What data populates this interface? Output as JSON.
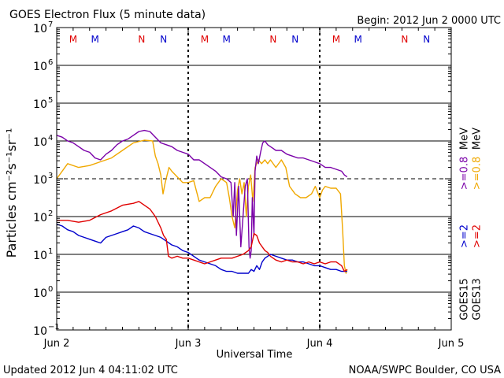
{
  "header": {
    "title": "GOES Electron Flux (5 minute data)",
    "begin": "Begin: 2012 Jun 2 0000 UTC"
  },
  "footer": {
    "updated": "Updated 2012 Jun  4 04:11:02 UTC",
    "credit": "NOAA/SWPC Boulder, CO USA"
  },
  "colors": {
    "red": "#e00000",
    "blue": "#0000cc",
    "purple": "#7a00a8",
    "orange": "#f0a800",
    "black": "#000000"
  },
  "chart_data": {
    "type": "line",
    "title": "GOES Electron Flux (5 minute data)",
    "xlabel": "Universal Time",
    "ylabel": "Particles cm⁻²s⁻¹sr⁻¹",
    "xlim_hours": [
      0,
      72
    ],
    "ylim_log10": [
      -1,
      7
    ],
    "yscale": "log",
    "x_ticks": [
      {
        "hour": 0,
        "label": "Jun 2"
      },
      {
        "hour": 24,
        "label": "Jun 3"
      },
      {
        "hour": 48,
        "label": "Jun 4"
      },
      {
        "hour": 72,
        "label": "Jun 5"
      }
    ],
    "y_ticks": [
      {
        "exp": 7,
        "label": "7"
      },
      {
        "exp": 6,
        "label": "6"
      },
      {
        "exp": 5,
        "label": "5"
      },
      {
        "exp": 4,
        "label": "4"
      },
      {
        "exp": 3,
        "label": "3"
      },
      {
        "exp": 2,
        "label": "2"
      },
      {
        "exp": 1,
        "label": "1"
      },
      {
        "exp": 0,
        "label": "0"
      },
      {
        "exp": -1,
        "label": "−1"
      }
    ],
    "tick_base": "10",
    "dashed_threshold_exp": 3,
    "day_boundaries_hours": [
      24,
      48
    ],
    "markers": [
      {
        "hour": 3,
        "label": "M",
        "color": "red"
      },
      {
        "hour": 7,
        "label": "M",
        "color": "blue"
      },
      {
        "hour": 15.5,
        "label": "N",
        "color": "red"
      },
      {
        "hour": 19.5,
        "label": "N",
        "color": "blue"
      },
      {
        "hour": 27,
        "label": "M",
        "color": "red"
      },
      {
        "hour": 31,
        "label": "M",
        "color": "blue"
      },
      {
        "hour": 39.5,
        "label": "N",
        "color": "red"
      },
      {
        "hour": 43.5,
        "label": "N",
        "color": "blue"
      },
      {
        "hour": 51,
        "label": "M",
        "color": "red"
      },
      {
        "hour": 55,
        "label": "M",
        "color": "blue"
      },
      {
        "hour": 63.5,
        "label": "N",
        "color": "red"
      },
      {
        "hour": 67.5,
        "label": "N",
        "color": "blue"
      }
    ],
    "legend": [
      {
        "satellite": "GOES13",
        "color": "black",
        "label": "GOES13"
      },
      {
        "satellite": "GOES15",
        "color": "black",
        "label": "GOES15"
      },
      {
        "label": ">=2",
        "color": "red"
      },
      {
        "label": ">=2",
        "color": "blue"
      },
      {
        "label": ">=0.8",
        "color": "orange"
      },
      {
        "label": ">=0.8",
        "color": "purple"
      },
      {
        "label": "MeV",
        "color": "black"
      }
    ],
    "series": [
      {
        "name": "GOES13 >=0.8 MeV",
        "color": "orange",
        "points": [
          [
            0,
            3.0
          ],
          [
            2,
            3.4
          ],
          [
            4,
            3.3
          ],
          [
            6,
            3.35
          ],
          [
            8,
            3.45
          ],
          [
            10,
            3.55
          ],
          [
            12,
            3.75
          ],
          [
            14,
            3.95
          ],
          [
            16,
            4.02
          ],
          [
            17.5,
            4.0
          ],
          [
            18,
            3.6
          ],
          [
            18.5,
            3.4
          ],
          [
            19,
            3.1
          ],
          [
            19.4,
            2.6
          ],
          [
            19.8,
            2.9
          ],
          [
            20.5,
            3.3
          ],
          [
            21,
            3.2
          ],
          [
            22,
            3.05
          ],
          [
            23,
            2.9
          ],
          [
            24,
            2.9
          ],
          [
            25,
            2.95
          ],
          [
            26,
            2.4
          ],
          [
            27,
            2.5
          ],
          [
            28,
            2.5
          ],
          [
            29,
            2.8
          ],
          [
            29.5,
            2.9
          ],
          [
            30,
            3.0
          ],
          [
            31,
            2.9
          ],
          [
            31.5,
            2.5
          ],
          [
            32,
            2.0
          ],
          [
            32.5,
            1.7
          ],
          [
            33,
            2.7
          ],
          [
            33.4,
            3.0
          ],
          [
            33.8,
            2.6
          ],
          [
            34.2,
            2.9
          ],
          [
            34.6,
            2.0
          ],
          [
            35,
            2.8
          ],
          [
            35.4,
            3.1
          ],
          [
            35.8,
            2.4
          ],
          [
            36.2,
            3.3
          ],
          [
            36.8,
            3.5
          ],
          [
            37.4,
            3.4
          ],
          [
            38,
            3.5
          ],
          [
            38.5,
            3.4
          ],
          [
            39,
            3.5
          ],
          [
            40,
            3.3
          ],
          [
            41,
            3.5
          ],
          [
            41.8,
            3.3
          ],
          [
            42.5,
            2.8
          ],
          [
            43.5,
            2.6
          ],
          [
            44.5,
            2.5
          ],
          [
            45.5,
            2.5
          ],
          [
            46.5,
            2.6
          ],
          [
            47.2,
            2.8
          ],
          [
            48,
            2.5
          ],
          [
            48.5,
            2.7
          ],
          [
            49,
            2.8
          ],
          [
            50,
            2.75
          ],
          [
            51,
            2.75
          ],
          [
            51.8,
            2.6
          ],
          [
            52.2,
            1.6
          ],
          [
            52.5,
            0.7
          ],
          [
            52.8,
            0.5
          ],
          [
            53,
            0.6
          ]
        ]
      },
      {
        "name": "GOES15 >=0.8 MeV",
        "color": "purple",
        "points": [
          [
            0,
            4.15
          ],
          [
            1,
            4.1
          ],
          [
            2,
            4.0
          ],
          [
            3,
            3.95
          ],
          [
            4,
            3.85
          ],
          [
            5,
            3.75
          ],
          [
            6,
            3.7
          ],
          [
            7,
            3.55
          ],
          [
            8,
            3.5
          ],
          [
            9,
            3.65
          ],
          [
            10,
            3.75
          ],
          [
            11,
            3.9
          ],
          [
            12,
            4.0
          ],
          [
            13,
            4.05
          ],
          [
            14,
            4.15
          ],
          [
            15,
            4.25
          ],
          [
            16,
            4.28
          ],
          [
            17,
            4.25
          ],
          [
            18,
            4.1
          ],
          [
            19,
            3.95
          ],
          [
            20,
            3.9
          ],
          [
            21,
            3.85
          ],
          [
            22,
            3.75
          ],
          [
            23,
            3.7
          ],
          [
            24,
            3.65
          ],
          [
            25,
            3.5
          ],
          [
            26,
            3.5
          ],
          [
            27,
            3.4
          ],
          [
            28,
            3.3
          ],
          [
            29,
            3.2
          ],
          [
            30,
            3.05
          ],
          [
            31,
            3.0
          ],
          [
            31.8,
            2.9
          ],
          [
            32.2,
            2.0
          ],
          [
            32.5,
            2.9
          ],
          [
            32.8,
            1.5
          ],
          [
            33.2,
            2.8
          ],
          [
            33.6,
            1.2
          ],
          [
            34,
            2.0
          ],
          [
            34.4,
            2.8
          ],
          [
            34.8,
            3.0
          ],
          [
            35.1,
            1.2
          ],
          [
            35.3,
            0.9
          ],
          [
            35.5,
            1.1
          ],
          [
            35.7,
            2.5
          ],
          [
            36,
            1.5
          ],
          [
            36.2,
            3.2
          ],
          [
            36.5,
            3.6
          ],
          [
            36.8,
            3.4
          ],
          [
            37.2,
            3.7
          ],
          [
            37.6,
            3.95
          ],
          [
            38,
            4.0
          ],
          [
            38.5,
            3.9
          ],
          [
            39,
            3.85
          ],
          [
            39.5,
            3.8
          ],
          [
            40,
            3.75
          ],
          [
            41,
            3.75
          ],
          [
            42,
            3.65
          ],
          [
            43,
            3.6
          ],
          [
            44,
            3.55
          ],
          [
            45,
            3.55
          ],
          [
            46,
            3.5
          ],
          [
            47,
            3.45
          ],
          [
            48,
            3.4
          ],
          [
            49,
            3.3
          ],
          [
            50,
            3.3
          ],
          [
            51,
            3.25
          ],
          [
            52,
            3.2
          ],
          [
            52.5,
            3.1
          ],
          [
            53,
            3.05
          ]
        ]
      },
      {
        "name": "GOES15 >=2 MeV",
        "color": "blue",
        "points": [
          [
            0,
            1.8
          ],
          [
            1,
            1.75
          ],
          [
            2,
            1.65
          ],
          [
            3,
            1.6
          ],
          [
            4,
            1.5
          ],
          [
            5,
            1.45
          ],
          [
            6,
            1.4
          ],
          [
            7,
            1.35
          ],
          [
            8,
            1.3
          ],
          [
            9,
            1.45
          ],
          [
            10,
            1.5
          ],
          [
            11,
            1.55
          ],
          [
            12,
            1.6
          ],
          [
            13,
            1.65
          ],
          [
            14,
            1.75
          ],
          [
            15,
            1.7
          ],
          [
            16,
            1.6
          ],
          [
            17,
            1.55
          ],
          [
            18,
            1.5
          ],
          [
            19,
            1.45
          ],
          [
            20,
            1.35
          ],
          [
            21,
            1.25
          ],
          [
            22,
            1.2
          ],
          [
            23,
            1.1
          ],
          [
            24,
            1.05
          ],
          [
            25,
            0.95
          ],
          [
            26,
            0.85
          ],
          [
            27,
            0.8
          ],
          [
            28,
            0.75
          ],
          [
            29,
            0.7
          ],
          [
            30,
            0.6
          ],
          [
            31,
            0.55
          ],
          [
            32,
            0.55
          ],
          [
            33,
            0.5
          ],
          [
            34,
            0.5
          ],
          [
            35,
            0.5
          ],
          [
            35.5,
            0.6
          ],
          [
            36,
            0.55
          ],
          [
            36.5,
            0.7
          ],
          [
            37,
            0.6
          ],
          [
            37.5,
            0.8
          ],
          [
            38,
            0.9
          ],
          [
            38.5,
            0.95
          ],
          [
            39,
            1.0
          ],
          [
            40,
            0.95
          ],
          [
            41,
            0.9
          ],
          [
            42,
            0.85
          ],
          [
            43,
            0.85
          ],
          [
            44,
            0.8
          ],
          [
            45,
            0.8
          ],
          [
            46,
            0.75
          ],
          [
            47,
            0.7
          ],
          [
            48,
            0.7
          ],
          [
            49,
            0.65
          ],
          [
            50,
            0.6
          ],
          [
            51,
            0.6
          ],
          [
            52,
            0.55
          ],
          [
            53,
            0.55
          ]
        ]
      },
      {
        "name": "GOES13 >=2 MeV",
        "color": "red",
        "points": [
          [
            0,
            1.9
          ],
          [
            2,
            1.9
          ],
          [
            4,
            1.85
          ],
          [
            6,
            1.9
          ],
          [
            8,
            2.05
          ],
          [
            10,
            2.15
          ],
          [
            12,
            2.3
          ],
          [
            14,
            2.35
          ],
          [
            15,
            2.4
          ],
          [
            16,
            2.3
          ],
          [
            17,
            2.2
          ],
          [
            18,
            2.0
          ],
          [
            19,
            1.7
          ],
          [
            19.5,
            1.5
          ],
          [
            20,
            1.4
          ],
          [
            20.4,
            0.95
          ],
          [
            21,
            0.9
          ],
          [
            22,
            0.95
          ],
          [
            23,
            0.9
          ],
          [
            24,
            0.9
          ],
          [
            25,
            0.85
          ],
          [
            26,
            0.8
          ],
          [
            27,
            0.75
          ],
          [
            28,
            0.8
          ],
          [
            29,
            0.85
          ],
          [
            30,
            0.9
          ],
          [
            31,
            0.9
          ],
          [
            32,
            0.9
          ],
          [
            33,
            0.95
          ],
          [
            34,
            1.0
          ],
          [
            35,
            1.1
          ],
          [
            35.5,
            1.2
          ],
          [
            36,
            1.55
          ],
          [
            36.5,
            1.5
          ],
          [
            37,
            1.3
          ],
          [
            37.5,
            1.2
          ],
          [
            38,
            1.1
          ],
          [
            38.5,
            1.05
          ],
          [
            39,
            0.95
          ],
          [
            40,
            0.85
          ],
          [
            41,
            0.8
          ],
          [
            42,
            0.85
          ],
          [
            43,
            0.8
          ],
          [
            44,
            0.8
          ],
          [
            45,
            0.75
          ],
          [
            46,
            0.8
          ],
          [
            47,
            0.75
          ],
          [
            48,
            0.8
          ],
          [
            49,
            0.75
          ],
          [
            50,
            0.8
          ],
          [
            51,
            0.8
          ],
          [
            52,
            0.7
          ],
          [
            52.5,
            0.55
          ],
          [
            53,
            0.6
          ]
        ]
      }
    ]
  }
}
